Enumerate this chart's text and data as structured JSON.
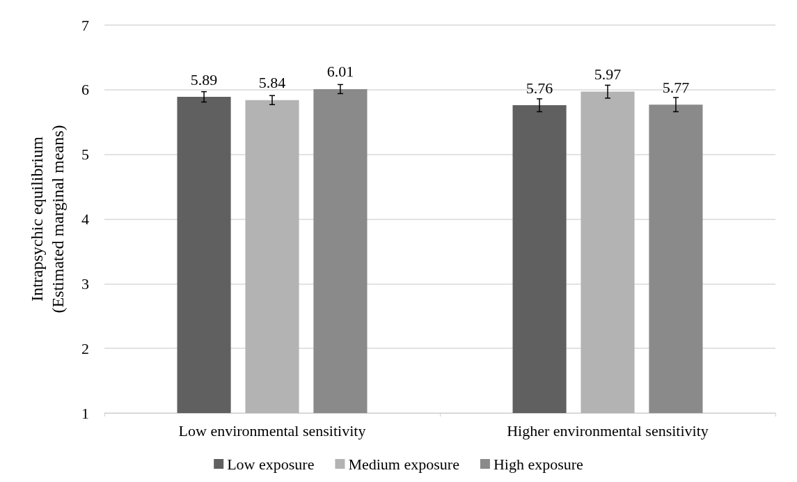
{
  "chart_data": {
    "type": "bar",
    "ylabel": "Intrapsychic equilibrium\n(Estimated marginal means)",
    "categories": [
      "Low environmental sensitivity",
      "Higher environmental sensitivity"
    ],
    "series": [
      {
        "name": "Low exposure",
        "color": "#606060",
        "values": [
          5.89,
          5.76
        ],
        "errors": [
          0.08,
          0.1
        ]
      },
      {
        "name": "Medium exposure",
        "color": "#b3b3b3",
        "values": [
          5.84,
          5.97
        ],
        "errors": [
          0.07,
          0.1
        ]
      },
      {
        "name": "High exposure",
        "color": "#8a8a8a",
        "values": [
          6.01,
          5.77
        ],
        "errors": [
          0.07,
          0.11
        ]
      }
    ],
    "ylim": [
      1,
      7
    ],
    "yticks": [
      1,
      2,
      3,
      4,
      5,
      6,
      7
    ],
    "grid": "y",
    "legend": "bottom",
    "data_labels": true
  }
}
